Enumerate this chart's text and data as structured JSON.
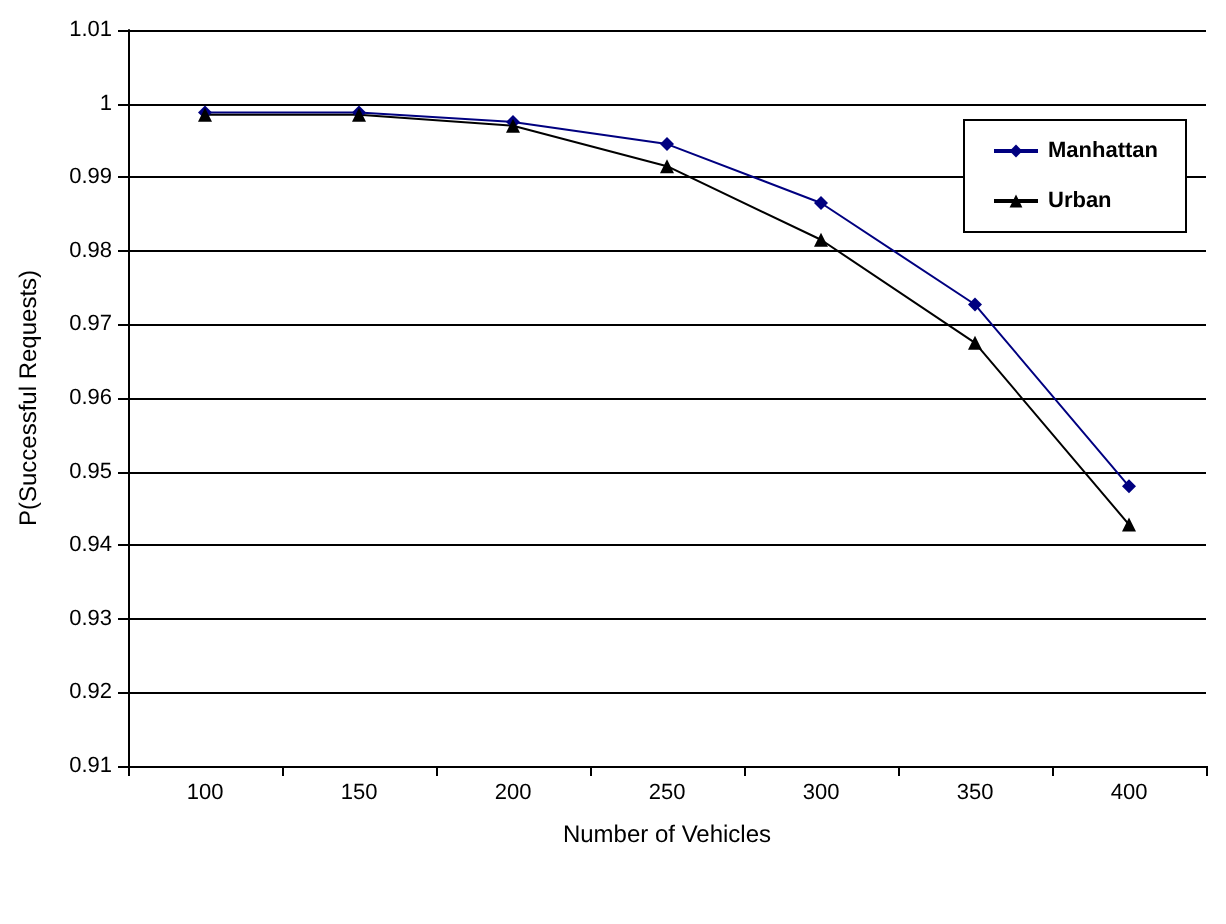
{
  "chart_data": {
    "type": "line",
    "xlabel": "Number of Vehicles",
    "ylabel": "P(Successful Requests)",
    "categories": [
      "100",
      "150",
      "200",
      "250",
      "300",
      "350",
      "400"
    ],
    "series": [
      {
        "name": "Manhattan",
        "color": "#000080",
        "marker": "diamond",
        "values": [
          0.9988,
          0.9988,
          0.9975,
          0.9945,
          0.9865,
          0.9727,
          0.948
        ]
      },
      {
        "name": "Urban",
        "color": "#000000",
        "marker": "triangle",
        "values": [
          0.9985,
          0.9985,
          0.997,
          0.9915,
          0.9815,
          0.9675,
          0.9428
        ]
      }
    ],
    "ylim": [
      0.91,
      1.01
    ],
    "yticks": [
      0.91,
      0.92,
      0.93,
      0.94,
      0.95,
      0.96,
      0.97,
      0.98,
      0.99,
      1,
      1.01
    ],
    "grid": "y",
    "legend": "top right"
  }
}
